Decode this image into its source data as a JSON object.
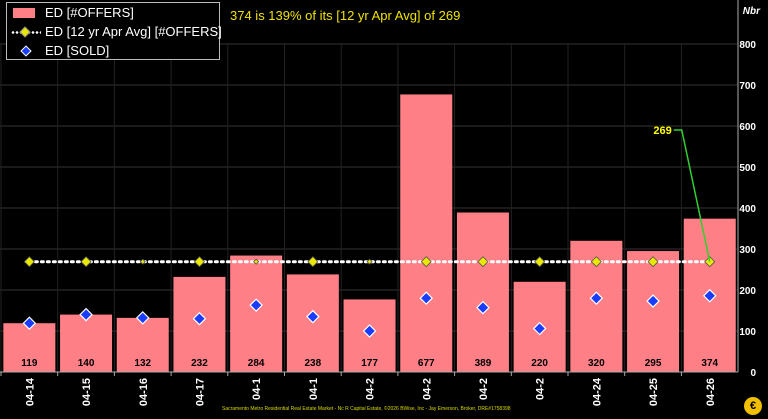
{
  "chart_data": {
    "type": "bar",
    "categories": [
      "04-14",
      "04-15",
      "04-16",
      "04-17",
      "04-18",
      "04-19",
      "04-20",
      "04-21",
      "04-22",
      "04-23",
      "04-24",
      "04-25",
      "04-26"
    ],
    "category_labels": [
      "04-14",
      "04-15",
      "04-16",
      "04-17",
      "04-1",
      "04-1",
      "04-2",
      "04-2",
      "04-2",
      "04-2",
      "04-24",
      "04-25",
      "04-26"
    ],
    "series": [
      {
        "name": "ED [#OFFERS]",
        "type": "bar",
        "color": "#ff7f86",
        "values": [
          119,
          140,
          132,
          232,
          284,
          238,
          177,
          677,
          389,
          220,
          320,
          295,
          374
        ]
      },
      {
        "name": "ED [12 yr Apr Avg] [#OFFERS]",
        "type": "line",
        "color": "#ffffff",
        "marker_color": "#e8e800",
        "values": [
          269,
          269,
          269,
          269,
          269,
          269,
          269,
          269,
          269,
          269,
          269,
          269,
          269
        ]
      },
      {
        "name": "ED [SOLD]",
        "type": "scatter",
        "color": "#1a3cff",
        "values": [
          119,
          140,
          132,
          130,
          163,
          135,
          100,
          180,
          157,
          106,
          180,
          173,
          186
        ]
      }
    ],
    "bar_labels": [
      "119",
      "140",
      "132",
      "232",
      "284",
      "238",
      "177",
      "677",
      "389",
      "220",
      "320",
      "295",
      "374"
    ],
    "yticks": [
      "0",
      "100",
      "200",
      "300",
      "400",
      "500",
      "600",
      "700",
      "800"
    ],
    "ylim": [
      0,
      800
    ],
    "ylabel": "Nbr",
    "headline": "374 is 139% of its [12 yr Apr Avg] of 269",
    "avg_callout": "269",
    "grid": true,
    "legend_position": "top-left"
  },
  "footer": "Sacramento Metro Residential Real Estate Market - Nc R Capital Estate, ©2026 BWise, Inc - Jay Emerson, Broker, DRE#1758398",
  "logo_glyph": "€"
}
